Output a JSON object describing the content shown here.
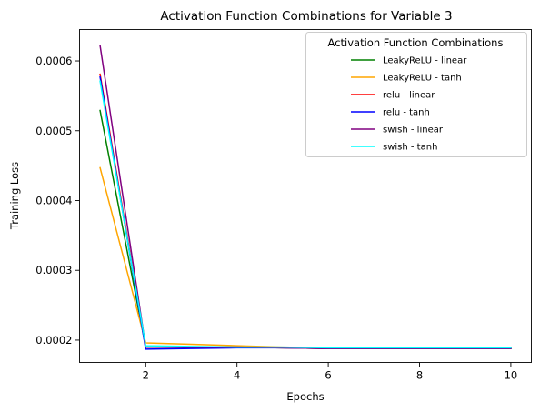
{
  "chart_data": {
    "type": "line",
    "title": "Activation Function Combinations for Variable 3",
    "xlabel": "Epochs",
    "ylabel": "Training Loss",
    "xlim": [
      0.55,
      10.45
    ],
    "ylim": [
      0.000168,
      0.000645
    ],
    "xticks": [
      2,
      4,
      6,
      8,
      10
    ],
    "xtick_labels": [
      "2",
      "4",
      "6",
      "8",
      "10"
    ],
    "yticks": [
      0.0002,
      0.0003,
      0.0004,
      0.0005,
      0.0006
    ],
    "ytick_labels": [
      "0.0002",
      "0.0003",
      "0.0004",
      "0.0005",
      "0.0006"
    ],
    "grid": false,
    "legend": {
      "title": "Activation Function Combinations",
      "placement": "upper-right"
    },
    "x": [
      1,
      2,
      3,
      4,
      5,
      6,
      7,
      8,
      9,
      10
    ],
    "series": [
      {
        "name": "LeakyReLU - linear",
        "color": "#008000",
        "values": [
          0.000529,
          0.00019,
          0.00019,
          0.00019,
          0.000189,
          0.000188,
          0.000188,
          0.000188,
          0.000188,
          0.000188
        ]
      },
      {
        "name": "LeakyReLU - tanh",
        "color": "#ffa500",
        "values": [
          0.000447,
          0.000196,
          0.000194,
          0.000192,
          0.00019,
          0.000189,
          0.000189,
          0.000189,
          0.000189,
          0.000189
        ]
      },
      {
        "name": "relu - linear",
        "color": "#ff0000",
        "values": [
          0.000581,
          0.00019,
          0.00019,
          0.00019,
          0.000189,
          0.000188,
          0.000188,
          0.000188,
          0.000188,
          0.000188
        ]
      },
      {
        "name": "relu - tanh",
        "color": "#0000ff",
        "values": [
          0.000577,
          0.000187,
          0.000188,
          0.000189,
          0.000189,
          0.000188,
          0.000188,
          0.000188,
          0.000188,
          0.000188
        ]
      },
      {
        "name": "swish - linear",
        "color": "#800080",
        "values": [
          0.000622,
          0.00019,
          0.00019,
          0.00019,
          0.000189,
          0.000188,
          0.000188,
          0.000188,
          0.000188,
          0.000188
        ]
      },
      {
        "name": "swish - tanh",
        "color": "#00ffff",
        "values": [
          0.000571,
          0.000192,
          0.000191,
          0.00019,
          0.00019,
          0.000189,
          0.000189,
          0.000189,
          0.000189,
          0.000189
        ]
      }
    ]
  }
}
